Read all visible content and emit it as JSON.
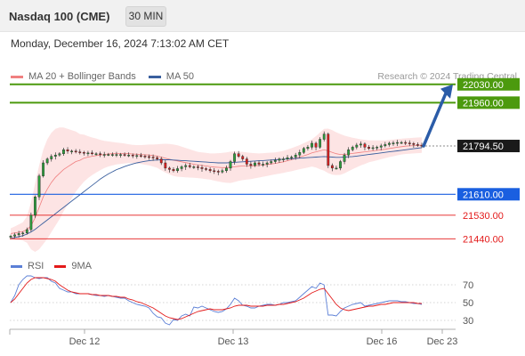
{
  "header": {
    "instrument": "Nasdaq 100 (CME)",
    "timeframe": "30 MIN"
  },
  "datetime": "Monday, December 16, 2024 7:13:02 AM CET",
  "legend": {
    "bollinger_label": "MA 20 + Bollinger Bands",
    "ma50_label": "MA 50",
    "copyright": "Research © 2024 Trading Central",
    "rsi_label": "RSI",
    "rsi_ma_label": "9MA"
  },
  "colors": {
    "bollinger": "#f08080",
    "bollinger_fill": "#fde4e4",
    "ma50": "#3a5f9e",
    "rsi": "#5b7fd6",
    "rsi_ma": "#e31a1a",
    "resistance": "#4c9a0e",
    "support_main": "#1a5fe0",
    "support_secondary": "#e31a1a",
    "up_candle": "#2e9e3e",
    "down_candle": "#d92020",
    "arrow": "#2b5ca8",
    "current": "#1a1a1a"
  },
  "chart_data": [
    {
      "type": "candlestick",
      "title": "",
      "x_ticks": [
        "Dec 12",
        "Dec 13",
        "Dec 16",
        "Dec 23"
      ],
      "ylim": [
        21390,
        22070
      ],
      "levels": [
        {
          "value": 22030.0,
          "label": "22030.00",
          "kind": "resistance"
        },
        {
          "value": 21960.0,
          "label": "21960.00",
          "kind": "resistance"
        },
        {
          "value": 21794.5,
          "label": "21794.50",
          "kind": "current"
        },
        {
          "value": 21610.0,
          "label": "21610.00",
          "kind": "support_main"
        },
        {
          "value": 21530.0,
          "label": "21530.00",
          "kind": "support_secondary"
        },
        {
          "value": 21440.0,
          "label": "21440.00",
          "kind": "support_secondary"
        }
      ],
      "closes": [
        21450,
        21455,
        21460,
        21462,
        21475,
        21530,
        21600,
        21680,
        21730,
        21745,
        21755,
        21760,
        21765,
        21780,
        21775,
        21775,
        21772,
        21770,
        21768,
        21768,
        21765,
        21765,
        21762,
        21762,
        21762,
        21762,
        21762,
        21762,
        21760,
        21760,
        21758,
        21758,
        21756,
        21754,
        21752,
        21750,
        21745,
        21730,
        21710,
        21705,
        21700,
        21708,
        21715,
        21720,
        21715,
        21715,
        21712,
        21708,
        21705,
        21700,
        21698,
        21695,
        21700,
        21710,
        21735,
        21765,
        21755,
        21745,
        21725,
        21720,
        21730,
        21725,
        21725,
        21730,
        21735,
        21740,
        21745,
        21745,
        21750,
        21752,
        21760,
        21770,
        21785,
        21790,
        21805,
        21790,
        21820,
        21840,
        21720,
        21710,
        21710,
        21735,
        21760,
        21780,
        21790,
        21798,
        21802,
        21790,
        21785,
        21788,
        21790,
        21795,
        21800,
        21805,
        21806,
        21808,
        21808,
        21806,
        21804,
        21800,
        21797,
        21794.5
      ],
      "ma20": [
        21460,
        21462,
        21465,
        21468,
        21475,
        21490,
        21520,
        21560,
        21600,
        21630,
        21655,
        21675,
        21690,
        21705,
        21715,
        21725,
        21735,
        21740,
        21748,
        21752,
        21755,
        21758,
        21760,
        21762,
        21764,
        21765,
        21766,
        21766,
        21766,
        21765,
        21764,
        21763,
        21762,
        21761,
        21760,
        21758,
        21756,
        21752,
        21748,
        21744,
        21740,
        21737,
        21734,
        21731,
        21728,
        21725,
        21722,
        21720,
        21718,
        21716,
        21714,
        21713,
        21712,
        21712,
        21713,
        21715,
        21717,
        21718,
        21718,
        21718,
        21719,
        21720,
        21722,
        21724,
        21726,
        21728,
        21731,
        21734,
        21738,
        21742,
        21747,
        21752,
        21757,
        21762,
        21768,
        21772,
        21776,
        21780,
        21776,
        21770,
        21765,
        21762,
        21762,
        21764,
        21766,
        21768,
        21770,
        21772,
        21774,
        21776,
        21778,
        21780,
        21782,
        21785,
        21787,
        21790,
        21792,
        21794,
        21795,
        21796,
        21797,
        21798
      ],
      "bb_width": [
        20,
        25,
        30,
        35,
        50,
        90,
        130,
        160,
        180,
        190,
        190,
        185,
        175,
        160,
        145,
        130,
        115,
        100,
        90,
        80,
        72,
        65,
        58,
        52,
        48,
        45,
        42,
        40,
        38,
        36,
        35,
        35,
        36,
        38,
        40,
        42,
        45,
        50,
        55,
        58,
        60,
        60,
        58,
        56,
        54,
        52,
        50,
        50,
        50,
        50,
        52,
        54,
        56,
        58,
        60,
        58,
        56,
        54,
        52,
        50,
        48,
        46,
        45,
        44,
        43,
        42,
        42,
        42,
        43,
        44,
        45,
        46,
        48,
        50,
        52,
        60,
        70,
        80,
        85,
        85,
        82,
        78,
        72,
        66,
        60,
        55,
        50,
        46,
        42,
        40,
        38,
        36,
        34,
        33,
        32,
        31,
        30,
        30,
        30,
        30,
        30,
        30
      ],
      "ma50": [
        21440,
        21445,
        21448,
        21452,
        21458,
        21466,
        21476,
        21488,
        21500,
        21512,
        21524,
        21536,
        21548,
        21560,
        21572,
        21584,
        21596,
        21608,
        21620,
        21632,
        21644,
        21656,
        21668,
        21678,
        21688,
        21696,
        21704,
        21710,
        21716,
        21721,
        21726,
        21730,
        21733,
        21736,
        21738,
        21740,
        21741,
        21742,
        21742,
        21742,
        21741,
        21740,
        21739,
        21738,
        21737,
        21736,
        21735,
        21734,
        21733,
        21732,
        21731,
        21730,
        21730,
        21730,
        21731,
        21732,
        21733,
        21734,
        21735,
        21736,
        21737,
        21738,
        21739,
        21740,
        21741,
        21742,
        21743,
        21744,
        21745,
        21746,
        21747,
        21748,
        21749,
        21750,
        21751,
        21752,
        21753,
        21754,
        21753,
        21752,
        21751,
        21751,
        21752,
        21753,
        21754,
        21756,
        21758,
        21760,
        21762,
        21764,
        21766,
        21768,
        21770,
        21772,
        21774,
        21776,
        21778,
        21780,
        21782,
        21784,
        21786,
        21788
      ]
    },
    {
      "type": "line",
      "title": "",
      "ylim": [
        20,
        80
      ],
      "y_ticks": [
        "70",
        "50",
        "30"
      ],
      "series": [
        {
          "name": "RSI",
          "values": [
            50,
            58,
            70,
            76,
            80,
            80,
            78,
            77,
            78,
            78,
            74,
            72,
            66,
            64,
            62,
            62,
            60,
            60,
            60,
            60,
            59,
            58,
            58,
            57,
            58,
            57,
            56,
            55,
            55,
            52,
            50,
            48,
            47,
            46,
            44,
            38,
            34,
            33,
            27,
            25,
            31,
            30,
            35,
            37,
            35,
            45,
            44,
            46,
            44,
            42,
            40,
            39,
            40,
            43,
            48,
            55,
            52,
            47,
            46,
            44,
            44,
            46,
            47,
            48,
            48,
            47,
            48,
            50,
            50,
            51,
            52,
            56,
            60,
            64,
            68,
            66,
            72,
            70,
            36,
            36,
            35,
            40,
            44,
            46,
            48,
            49,
            50,
            46,
            47,
            48,
            49,
            50,
            51,
            52,
            52,
            52,
            51,
            51,
            50,
            49,
            49,
            48
          ]
        },
        {
          "name": "9MA",
          "values": [
            50,
            54,
            60,
            66,
            72,
            76,
            78,
            78,
            78,
            77,
            76,
            74,
            70,
            67,
            64,
            62,
            61,
            60,
            60,
            60,
            59,
            59,
            58,
            58,
            58,
            57,
            57,
            56,
            56,
            54,
            53,
            51,
            50,
            48,
            46,
            44,
            41,
            38,
            35,
            33,
            32,
            31,
            32,
            34,
            36,
            38,
            40,
            41,
            42,
            43,
            42,
            42,
            42,
            43,
            44,
            46,
            47,
            47,
            47,
            46,
            46,
            46,
            46,
            47,
            47,
            47,
            48,
            48,
            49,
            50,
            51,
            53,
            55,
            58,
            61,
            63,
            65,
            66,
            60,
            54,
            48,
            44,
            42,
            41,
            42,
            43,
            44,
            45,
            46,
            46,
            47,
            48,
            48,
            49,
            50,
            50,
            50,
            50,
            50,
            50,
            49,
            49
          ]
        }
      ]
    }
  ]
}
